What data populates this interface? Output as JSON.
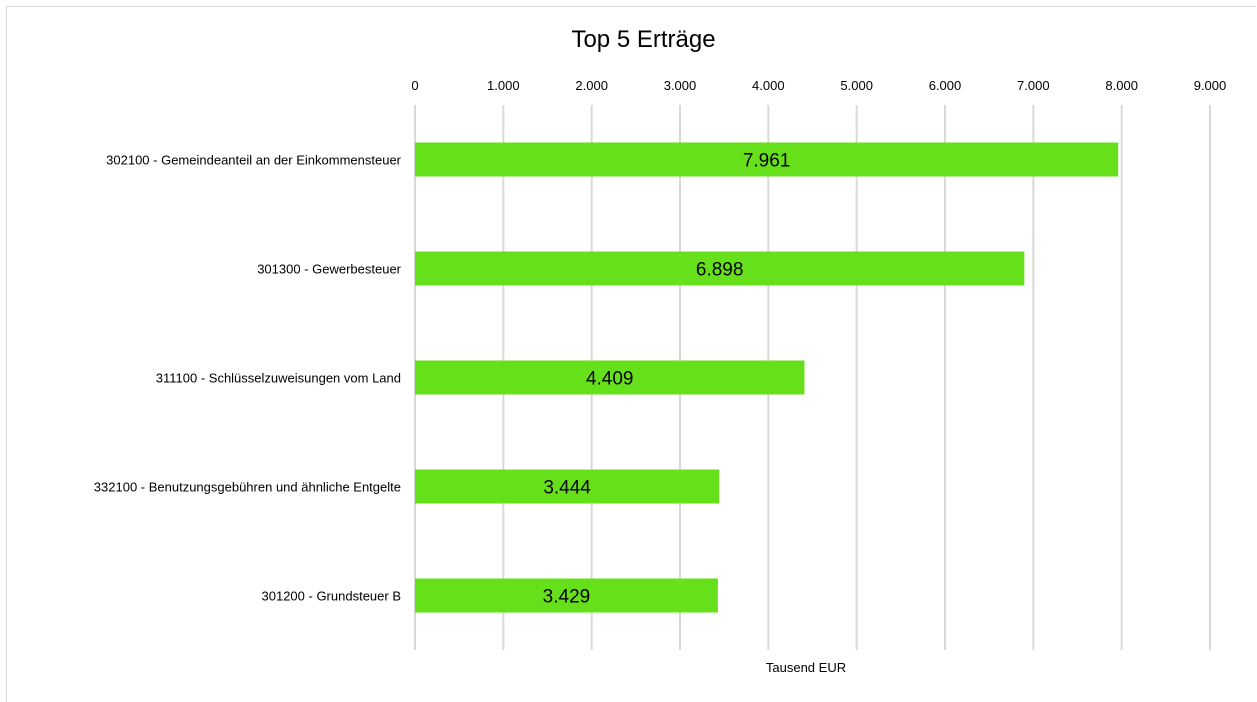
{
  "chart_data": {
    "type": "bar",
    "orientation": "horizontal",
    "title": "Top 5 Erträge",
    "xlabel": "Tausend EUR",
    "ylabel": "",
    "categories": [
      "302100 - Gemeindeanteil an der Einkommensteuer",
      "301300 - Gewerbesteuer",
      "311100 - Schlüsselzuweisungen vom Land",
      "332100 - Benutzungsgebühren und ähnliche Entgelte",
      "301200 - Grundsteuer B"
    ],
    "values": [
      7961,
      6898,
      4409,
      3444,
      3429
    ],
    "data_labels": [
      "7.961",
      "6.898",
      "4.409",
      "3.444",
      "3.429"
    ],
    "xlim": [
      0,
      9000
    ],
    "tick_values": [
      0,
      1000,
      2000,
      3000,
      4000,
      5000,
      6000,
      7000,
      8000,
      9000
    ],
    "tick_labels": [
      "0",
      "1.000",
      "2.000",
      "3.000",
      "4.000",
      "5.000",
      "6.000",
      "7.000",
      "8.000",
      "9.000"
    ],
    "axis_position": "top",
    "grid": true,
    "legend": "none",
    "bar_color": "#66e01a",
    "grid_color": "#d9d9d9"
  }
}
